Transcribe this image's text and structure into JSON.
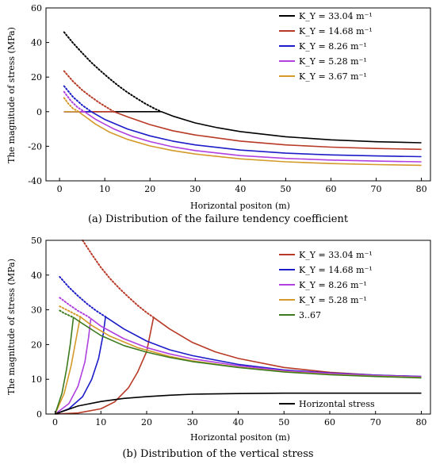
{
  "chart_data": [
    {
      "type": "line",
      "caption": "(a) Distribution of the failure tendency coefficient",
      "xlabel": "Horizontal positon  (m)",
      "ylabel": "The magnitude of stress  (MPa)",
      "xlim": [
        -3,
        82
      ],
      "ylim": [
        -40,
        60
      ],
      "xticks": [
        0,
        10,
        20,
        30,
        40,
        50,
        60,
        70,
        80
      ],
      "yticks": [
        -40,
        -20,
        0,
        20,
        40,
        60
      ],
      "legend_position": "top-right",
      "series": [
        {
          "name": "K_Y = 33.04 m⁻¹",
          "color": "#000000",
          "dotted": {
            "x": [
              1,
              3,
              5,
              7,
              9,
              11,
              13,
              15,
              17,
              19,
              21,
              22.5
            ],
            "y": [
              46,
              39.7,
              34,
              28.5,
              23.7,
              19.2,
              15,
              11.2,
              7.8,
              4.6,
              1.8,
              0
            ]
          },
          "solid": {
            "x": [
              1,
              22.5,
              25,
              30,
              35,
              40,
              50,
              60,
              70,
              80
            ],
            "y": [
              0,
              0,
              -2.5,
              -6.5,
              -9.3,
              -11.5,
              -14.5,
              -16.3,
              -17.4,
              -18
            ]
          }
        },
        {
          "name": "K_Y = 14.68 m⁻¹",
          "color": "#B83A26",
          "dotted": {
            "x": [
              1,
              3,
              5,
              7,
              9,
              11,
              12
            ],
            "y": [
              23.5,
              17.5,
              12.5,
              8.5,
              4.8,
              1.6,
              0
            ]
          },
          "solid": {
            "x": [
              1,
              12,
              15,
              20,
              25,
              30,
              40,
              50,
              60,
              70,
              80
            ],
            "y": [
              0,
              0,
              -3,
              -7.5,
              -11,
              -13.5,
              -17,
              -19.2,
              -20.5,
              -21.3,
              -21.8
            ]
          }
        },
        {
          "name": "K_Y = 8.26 m⁻¹",
          "color": "#1C1CC8",
          "dotted": {
            "x": [
              1,
              3,
              5,
              7
            ],
            "y": [
              14.8,
              8.5,
              3.8,
              0
            ]
          },
          "solid": {
            "x": [
              1,
              7,
              10,
              15,
              20,
              25,
              30,
              40,
              50,
              60,
              70,
              80
            ],
            "y": [
              0,
              0,
              -4.5,
              -10,
              -14,
              -17,
              -19.2,
              -22.2,
              -24,
              -25,
              -25.6,
              -26
            ]
          }
        },
        {
          "name": "K_Y = 5.28 m⁻¹",
          "color": "#B040E0",
          "dotted": {
            "x": [
              1,
              2.5,
              4,
              5.5
            ],
            "y": [
              11.5,
              6.3,
              2.5,
              0
            ]
          },
          "solid": {
            "x": [
              1,
              5.5,
              8,
              12,
              16,
              20,
              25,
              30,
              40,
              50,
              60,
              70,
              80
            ],
            "y": [
              0,
              0,
              -4.5,
              -10,
              -14.2,
              -17.3,
              -20.3,
              -22.5,
              -25.4,
              -27,
              -28,
              -28.6,
              -29
            ]
          }
        },
        {
          "name": "K_Y = 3.67 m⁻¹",
          "color": "#D49A2A",
          "dotted": {
            "x": [
              1,
              2,
              3,
              4.2
            ],
            "y": [
              8,
              4.5,
              1.8,
              0
            ]
          },
          "solid": {
            "x": [
              1,
              4.2,
              6,
              8,
              11,
              15,
              20,
              25,
              30,
              40,
              50,
              60,
              70,
              80
            ],
            "y": [
              0,
              0,
              -3.5,
              -7.3,
              -11.8,
              -16,
              -19.8,
              -22.5,
              -24.5,
              -27.3,
              -29,
              -30,
              -30.6,
              -31
            ]
          }
        }
      ]
    },
    {
      "type": "line",
      "caption": "(b) Distribution of the vertical stress",
      "xlabel": "Horizontal positon  (m)",
      "ylabel": "The magnitude of stress  (MPa)",
      "xlim": [
        -2,
        82
      ],
      "ylim": [
        0,
        50
      ],
      "xticks": [
        0,
        10,
        20,
        30,
        40,
        50,
        60,
        70,
        80
      ],
      "yticks": [
        0,
        10,
        20,
        30,
        40,
        50
      ],
      "legend_position": "top-right",
      "series": [
        {
          "name": "K_Y = 33.04 m⁻¹",
          "color": "#B83A26",
          "dotted": {
            "x": [
              6,
              8,
              10,
              12,
              14,
              16,
              18,
              20,
              21.5
            ],
            "y": [
              50,
              46,
              42.2,
              39,
              36.2,
              33.7,
              31.3,
              29.2,
              27.8
            ]
          },
          "solid": {
            "x": [
              0,
              5,
              10,
              13,
              16,
              18,
              20,
              21.5,
              25,
              30,
              35,
              40,
              50,
              60,
              70,
              80
            ],
            "y": [
              0,
              0.3,
              1.5,
              3.5,
              7.5,
              12,
              18,
              27.8,
              24.5,
              20.6,
              17.9,
              16,
              13.4,
              12,
              11.2,
              10.8
            ]
          }
        },
        {
          "name": "K_Y = 14.68 m⁻¹",
          "color": "#1C1CC8",
          "dotted": {
            "x": [
              1,
              3,
              5,
              7,
              9,
              11
            ],
            "y": [
              39.5,
              36.5,
              34,
              31.7,
              29.7,
              28
            ]
          },
          "solid": {
            "x": [
              0,
              3,
              6,
              8,
              9.5,
              10.5,
              11,
              15,
              20,
              25,
              30,
              40,
              50,
              60,
              70,
              80
            ],
            "y": [
              0,
              1.5,
              5,
              10,
              16,
              23,
              28,
              24.5,
              21,
              18.5,
              16.8,
              14.3,
              12.7,
              11.8,
              11.2,
              10.8
            ]
          }
        },
        {
          "name": "K_Y = 8.26 m⁻¹",
          "color": "#B040E0",
          "dotted": {
            "x": [
              1,
              3,
              5,
              7,
              7.8
            ],
            "y": [
              33.5,
              31.5,
              29.7,
              28.2,
              27.5
            ]
          },
          "solid": {
            "x": [
              0,
              3,
              5,
              6.5,
              7.3,
              7.8,
              10,
              15,
              20,
              25,
              30,
              40,
              50,
              60,
              70,
              80
            ],
            "y": [
              0,
              3,
              8,
              15,
              22,
              27.5,
              25.3,
              21.7,
              19.1,
              17.3,
              15.9,
              13.9,
              12.5,
              11.7,
              11.1,
              10.7
            ]
          }
        },
        {
          "name": "K_Y = 5.28 m⁻¹",
          "color": "#D49A2A",
          "dotted": {
            "x": [
              1,
              2.5,
              4,
              5.5
            ],
            "y": [
              31,
              30,
              29,
              28
            ]
          },
          "solid": {
            "x": [
              0,
              2,
              3.5,
              4.5,
              5.5,
              8,
              12,
              18,
              25,
              30,
              40,
              50,
              60,
              70,
              80
            ],
            "y": [
              0,
              6,
              14,
              21,
              28,
              25.5,
              22.4,
              19.1,
              16.6,
              15.3,
              13.5,
              12.2,
              11.4,
              10.9,
              10.5
            ]
          }
        },
        {
          "name": "3..67",
          "color": "#3C7A1E",
          "dotted": {
            "x": [
              1,
              2,
              3,
              4
            ],
            "y": [
              29.8,
              29,
              28.4,
              27.8
            ]
          },
          "solid": {
            "x": [
              0,
              1.5,
              2.5,
              3.3,
              4,
              6,
              10,
              15,
              20,
              25,
              30,
              40,
              50,
              60,
              70,
              80
            ],
            "y": [
              0,
              6,
              13,
              20,
              27.8,
              26,
              22.6,
              19.7,
              17.8,
              16.3,
              15.1,
              13.4,
              12.1,
              11.3,
              10.8,
              10.4
            ]
          }
        },
        {
          "name": "Horizontal stress",
          "color": "#000000",
          "solid": {
            "x": [
              0,
              5,
              10,
              15,
              20,
              25,
              30,
              40,
              50,
              60,
              70,
              80
            ],
            "y": [
              0,
              2.3,
              3.6,
              4.5,
              5,
              5.4,
              5.7,
              5.9,
              6,
              6,
              6,
              6
            ]
          }
        }
      ]
    }
  ]
}
